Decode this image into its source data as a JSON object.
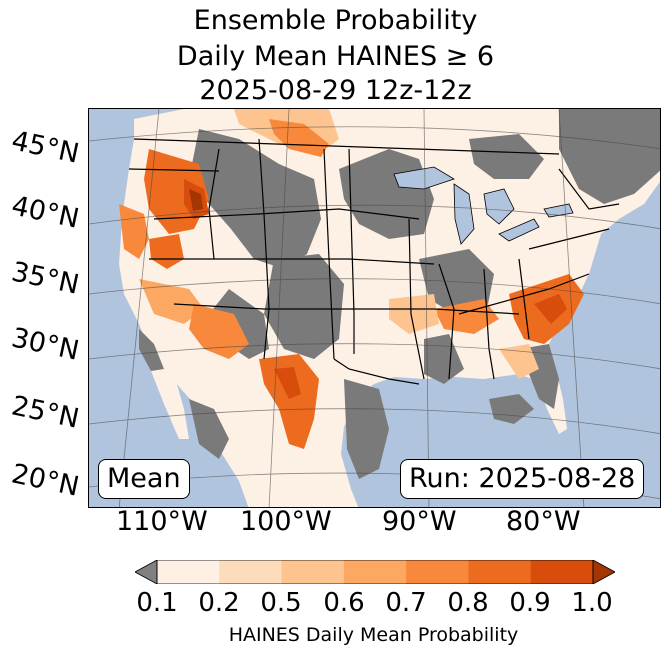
{
  "title": {
    "line1": "Ensemble Probability",
    "line2": "Daily Mean HAINES ≥ 6",
    "line3": "2025-08-29 12z-12z"
  },
  "axes": {
    "lat_labels": [
      "45°N",
      "40°N",
      "35°N",
      "30°N",
      "25°N",
      "20°N"
    ],
    "lon_labels": [
      "110°W",
      "100°W",
      "90°W",
      "80°W"
    ]
  },
  "annotations": {
    "left": "Mean",
    "right": "Run: 2025-08-28"
  },
  "colorbar": {
    "ticks": [
      "0.1",
      "0.2",
      "0.5",
      "0.6",
      "0.7",
      "0.8",
      "0.9",
      "1.0"
    ],
    "colors": [
      "#fef1e4",
      "#fddcbb",
      "#fdc48f",
      "#fca863",
      "#f8893c",
      "#ec6b1f",
      "#d84d0b"
    ],
    "under_color": "#808080",
    "over_color": "#a33603",
    "label": "HAINES Daily Mean Probability"
  },
  "map_colors": {
    "ocean": "#b0c4de",
    "land": "#fdf0e4",
    "gray": "#7a7a7a",
    "lakes": "#b0c4de"
  }
}
